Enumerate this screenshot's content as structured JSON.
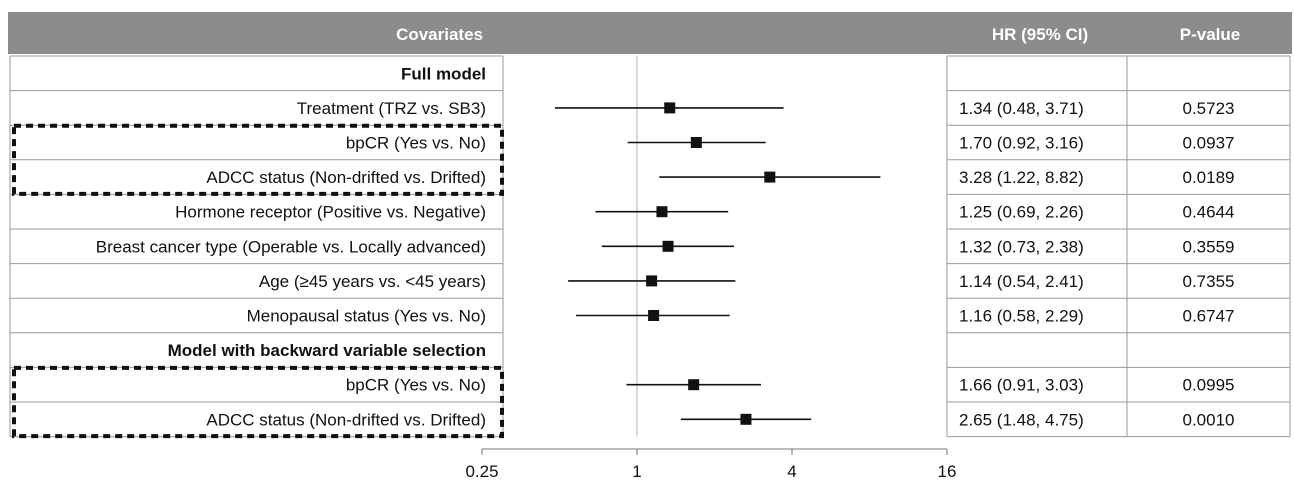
{
  "chart_data": {
    "type": "forest",
    "scale": "log",
    "null_value": 1,
    "headers": {
      "covariates": "Covariates",
      "hr": "HR (95% CI)",
      "p": "P-value"
    },
    "x_ticks": [
      {
        "value": 0.25,
        "label": "0.25"
      },
      {
        "value": 1,
        "label": "1"
      },
      {
        "value": 4,
        "label": "4"
      },
      {
        "value": 16,
        "label": "16"
      }
    ],
    "xlim": [
      0.25,
      16
    ],
    "highlight_color": "#111111",
    "header_color": "#8c8c8c",
    "rows": [
      {
        "label": "Full model",
        "section": true
      },
      {
        "label": "Treatment (TRZ vs. SB3)",
        "hr": 1.34,
        "lo": 0.48,
        "hi": 3.71,
        "ci_text": "1.34 (0.48, 3.71)",
        "p": "0.5723"
      },
      {
        "label": "bpCR (Yes vs. No)",
        "hr": 1.7,
        "lo": 0.92,
        "hi": 3.16,
        "ci_text": "1.70 (0.92, 3.16)",
        "p": "0.0937",
        "highlight_group": 1
      },
      {
        "label": "ADCC status (Non-drifted vs. Drifted)",
        "hr": 3.28,
        "lo": 1.22,
        "hi": 8.82,
        "ci_text": "3.28 (1.22, 8.82)",
        "p": "0.0189",
        "highlight_group": 1
      },
      {
        "label": "Hormone receptor (Positive vs. Negative)",
        "hr": 1.25,
        "lo": 0.69,
        "hi": 2.26,
        "ci_text": "1.25 (0.69, 2.26)",
        "p": "0.4644"
      },
      {
        "label": "Breast cancer type (Operable vs. Locally advanced)",
        "hr": 1.32,
        "lo": 0.73,
        "hi": 2.38,
        "ci_text": "1.32 (0.73, 2.38)",
        "p": "0.3559"
      },
      {
        "label": "Age (≥45 years vs. <45 years)",
        "hr": 1.14,
        "lo": 0.54,
        "hi": 2.41,
        "ci_text": "1.14 (0.54, 2.41)",
        "p": "0.7355"
      },
      {
        "label": "Menopausal status (Yes vs. No)",
        "hr": 1.16,
        "lo": 0.58,
        "hi": 2.29,
        "ci_text": "1.16 (0.58, 2.29)",
        "p": "0.6747"
      },
      {
        "label": "Model with backward variable selection",
        "section": true
      },
      {
        "label": "bpCR (Yes vs. No)",
        "hr": 1.66,
        "lo": 0.91,
        "hi": 3.03,
        "ci_text": "1.66 (0.91, 3.03)",
        "p": "0.0995",
        "highlight_group": 2
      },
      {
        "label": "ADCC status (Non-drifted vs. Drifted)",
        "hr": 2.65,
        "lo": 1.48,
        "hi": 4.75,
        "ci_text": "2.65 (1.48, 4.75)",
        "p": "0.0010",
        "highlight_group": 2
      }
    ]
  }
}
